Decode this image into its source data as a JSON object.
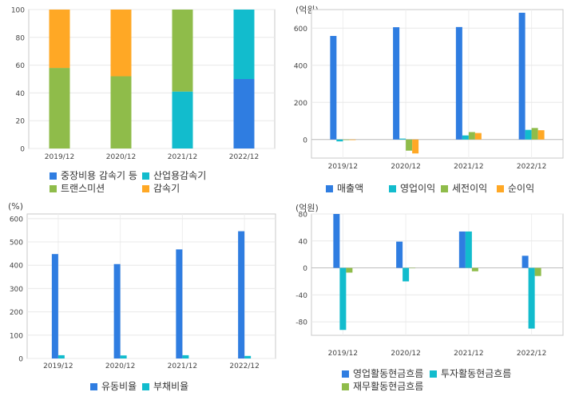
{
  "chart_data": [
    {
      "type": "bar",
      "stacked": true,
      "unit_label": "",
      "categories": [
        "2019/12",
        "2020/12",
        "2021/12",
        "2022/12"
      ],
      "ylim": [
        0,
        100
      ],
      "yticks": [
        0,
        20,
        40,
        60,
        80,
        100
      ],
      "legend_position": "bottom",
      "series": [
        {
          "name": "중장비용 감속기 등",
          "color": "#2f7de1",
          "values": [
            0,
            0,
            0,
            50
          ]
        },
        {
          "name": "산업용감속기",
          "color": "#12bccd",
          "values": [
            0,
            0,
            41,
            50
          ]
        },
        {
          "name": "트랜스미션",
          "color": "#8fbc4a",
          "values": [
            58,
            52,
            59,
            0
          ]
        },
        {
          "name": "감속기",
          "color": "#ffa825",
          "values": [
            42,
            48,
            0,
            0
          ]
        }
      ]
    },
    {
      "type": "bar",
      "unit_label": "(억원)",
      "categories": [
        "2019/12",
        "2020/12",
        "2021/12",
        "2022/12"
      ],
      "ylim": [
        -100,
        700
      ],
      "yticks": [
        0,
        200,
        400,
        600
      ],
      "legend_position": "bottom",
      "series": [
        {
          "name": "매출액",
          "color": "#2f7de1",
          "values": [
            558,
            605,
            606,
            683
          ]
        },
        {
          "name": "영업이익",
          "color": "#12bccd",
          "values": [
            -10,
            5,
            22,
            52
          ]
        },
        {
          "name": "세전이익",
          "color": "#8fbc4a",
          "values": [
            -3,
            -60,
            40,
            62
          ]
        },
        {
          "name": "순이익",
          "color": "#ffa825",
          "values": [
            -3,
            -75,
            35,
            50
          ]
        }
      ]
    },
    {
      "type": "bar",
      "unit_label": "(%)",
      "categories": [
        "2019/12",
        "2020/12",
        "2021/12",
        "2022/12"
      ],
      "ylim": [
        0,
        620
      ],
      "yticks": [
        0,
        100,
        200,
        300,
        400,
        500,
        600
      ],
      "legend_position": "bottom",
      "series": [
        {
          "name": "유동비율",
          "color": "#2f7de1",
          "values": [
            448,
            405,
            468,
            546
          ]
        },
        {
          "name": "부채비율",
          "color": "#12bccd",
          "values": [
            14,
            13,
            14,
            11
          ]
        }
      ]
    },
    {
      "type": "bar",
      "unit_label": "(억원)",
      "categories": [
        "2019/12",
        "2020/12",
        "2021/12",
        "2022/12"
      ],
      "ylim": [
        -100,
        80
      ],
      "yticks": [
        -80,
        -40,
        0,
        40,
        80
      ],
      "legend_position": "bottom",
      "series": [
        {
          "name": "영업활동현금흐름",
          "color": "#2f7de1",
          "values": [
            80,
            39,
            54,
            18
          ]
        },
        {
          "name": "투자활동현금흐름",
          "color": "#12bccd",
          "values": [
            -92,
            -20,
            54,
            -90
          ]
        },
        {
          "name": "재무활동현금흐름",
          "color": "#8fbc4a",
          "values": [
            -7,
            0,
            -5,
            -12
          ]
        }
      ]
    }
  ]
}
